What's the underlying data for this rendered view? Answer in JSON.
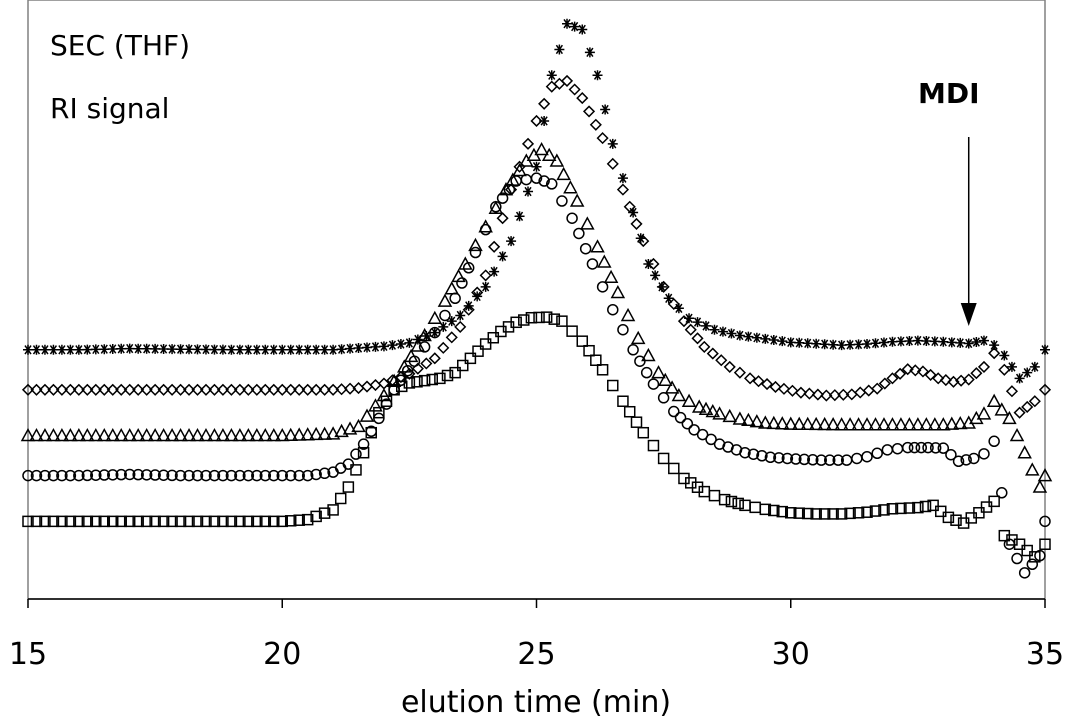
{
  "chart_data": {
    "type": "scatter",
    "title": "",
    "xlabel": "elution time (min)",
    "ylabel": "",
    "xlim": [
      15,
      35
    ],
    "ylim": [
      0,
      100
    ],
    "x_ticks": [
      "15",
      "20",
      "25",
      "30",
      "35"
    ],
    "grid": false,
    "legend": "none",
    "annotations": [
      {
        "text": "SEC (THF)",
        "style": "normal"
      },
      {
        "text": "RI signal",
        "style": "normal"
      },
      {
        "text": "MDI",
        "style": "bold",
        "arrow_x": 33.5
      }
    ],
    "series": [
      {
        "marker": "star",
        "points": [
          [
            15,
            42
          ],
          [
            16,
            42
          ],
          [
            17,
            42.2
          ],
          [
            18,
            42.1
          ],
          [
            19,
            42
          ],
          [
            20,
            42
          ],
          [
            21,
            42
          ],
          [
            21.5,
            42.3
          ],
          [
            22,
            42.6
          ],
          [
            22.5,
            43.2
          ],
          [
            23,
            45
          ],
          [
            23.5,
            48
          ],
          [
            24,
            53
          ],
          [
            24.5,
            61
          ],
          [
            25,
            74
          ],
          [
            25.3,
            90
          ],
          [
            25.6,
            99
          ],
          [
            25.9,
            98
          ],
          [
            26.2,
            90
          ],
          [
            26.5,
            78
          ],
          [
            26.9,
            66
          ],
          [
            27.2,
            57
          ],
          [
            27.6,
            51
          ],
          [
            28,
            47.5
          ],
          [
            28.5,
            45.5
          ],
          [
            29,
            44.5
          ],
          [
            30,
            43.3
          ],
          [
            31,
            42.8
          ],
          [
            31.5,
            43
          ],
          [
            32,
            43.4
          ],
          [
            32.5,
            43.6
          ],
          [
            33,
            43.4
          ],
          [
            33.5,
            43.1
          ],
          [
            33.8,
            43.6
          ],
          [
            34,
            42.8
          ],
          [
            34.2,
            41
          ],
          [
            34.5,
            37
          ],
          [
            34.8,
            39
          ],
          [
            35,
            42
          ]
        ]
      },
      {
        "marker": "diamond",
        "points": [
          [
            15,
            35
          ],
          [
            16,
            35
          ],
          [
            17,
            35
          ],
          [
            18,
            35
          ],
          [
            19,
            35
          ],
          [
            20,
            35
          ],
          [
            21,
            35
          ],
          [
            21.5,
            35.3
          ],
          [
            22,
            36.1
          ],
          [
            22.5,
            37.8
          ],
          [
            23,
            40.5
          ],
          [
            23.5,
            46
          ],
          [
            24,
            55
          ],
          [
            24.5,
            70
          ],
          [
            25,
            82
          ],
          [
            25.3,
            88
          ],
          [
            25.6,
            89
          ],
          [
            25.9,
            86
          ],
          [
            26.3,
            79
          ],
          [
            26.7,
            70
          ],
          [
            27.1,
            61
          ],
          [
            27.5,
            53
          ],
          [
            27.9,
            47
          ],
          [
            28.3,
            42.5
          ],
          [
            28.8,
            39
          ],
          [
            29.2,
            37
          ],
          [
            29.7,
            35.5
          ],
          [
            30.2,
            34.5
          ],
          [
            30.7,
            34
          ],
          [
            31.2,
            34.2
          ],
          [
            31.7,
            35.2
          ],
          [
            32,
            37
          ],
          [
            32.3,
            38.6
          ],
          [
            32.6,
            38.2
          ],
          [
            32.9,
            37
          ],
          [
            33.2,
            36.4
          ],
          [
            33.5,
            36.8
          ],
          [
            33.8,
            39
          ],
          [
            34,
            41.4
          ],
          [
            34.2,
            38.5
          ],
          [
            34.5,
            31
          ],
          [
            34.8,
            33
          ],
          [
            35,
            35
          ]
        ]
      },
      {
        "marker": "triangle",
        "points": [
          [
            15,
            27
          ],
          [
            16,
            27
          ],
          [
            17,
            27
          ],
          [
            18,
            27
          ],
          [
            19,
            27
          ],
          [
            20,
            27
          ],
          [
            21,
            27.3
          ],
          [
            21.5,
            28.6
          ],
          [
            22,
            34
          ],
          [
            22.4,
            39
          ],
          [
            22.8,
            44.5
          ],
          [
            23.2,
            50.5
          ],
          [
            23.6,
            57
          ],
          [
            24,
            63.5
          ],
          [
            24.4,
            70
          ],
          [
            24.8,
            75
          ],
          [
            25.1,
            77
          ],
          [
            25.4,
            75
          ],
          [
            25.8,
            68
          ],
          [
            26.2,
            60
          ],
          [
            26.6,
            52
          ],
          [
            27,
            44
          ],
          [
            27.4,
            38
          ],
          [
            27.8,
            34
          ],
          [
            28.2,
            32
          ],
          [
            28.6,
            30.8
          ],
          [
            29,
            29.9
          ],
          [
            29.5,
            29.2
          ],
          [
            30,
            29
          ],
          [
            31,
            28.9
          ],
          [
            32,
            28.9
          ],
          [
            33,
            28.9
          ],
          [
            33.5,
            29.2
          ],
          [
            33.8,
            30.8
          ],
          [
            34,
            33
          ],
          [
            34.3,
            30
          ],
          [
            34.6,
            24
          ],
          [
            34.9,
            18
          ],
          [
            35,
            20
          ]
        ]
      },
      {
        "marker": "circle",
        "points": [
          [
            15,
            20
          ],
          [
            16,
            20
          ],
          [
            17,
            20.2
          ],
          [
            18,
            20
          ],
          [
            19,
            20
          ],
          [
            20,
            20
          ],
          [
            20.5,
            20
          ],
          [
            21,
            20.6
          ],
          [
            21.3,
            22
          ],
          [
            21.6,
            25.5
          ],
          [
            21.9,
            30
          ],
          [
            22.2,
            35
          ],
          [
            22.6,
            40
          ],
          [
            23,
            45
          ],
          [
            23.4,
            51
          ],
          [
            23.8,
            59
          ],
          [
            24.2,
            67
          ],
          [
            24.6,
            71.5
          ],
          [
            25,
            72
          ],
          [
            25.3,
            71
          ],
          [
            25.7,
            65
          ],
          [
            26.1,
            57
          ],
          [
            26.5,
            49
          ],
          [
            26.9,
            42
          ],
          [
            27.3,
            36
          ],
          [
            27.7,
            31.2
          ],
          [
            28.1,
            28
          ],
          [
            28.6,
            25.5
          ],
          [
            29.1,
            24
          ],
          [
            29.6,
            23.2
          ],
          [
            30.1,
            22.9
          ],
          [
            30.6,
            22.7
          ],
          [
            31.1,
            22.7
          ],
          [
            31.5,
            23.3
          ],
          [
            31.9,
            24.5
          ],
          [
            32.3,
            24.9
          ],
          [
            32.7,
            24.9
          ],
          [
            33,
            24.8
          ],
          [
            33.3,
            22.5
          ],
          [
            33.6,
            23
          ],
          [
            33.8,
            23.8
          ],
          [
            34,
            26
          ],
          [
            34.3,
            8
          ],
          [
            34.6,
            3
          ],
          [
            34.9,
            6
          ],
          [
            35,
            12
          ]
        ]
      },
      {
        "marker": "square",
        "points": [
          [
            15,
            12
          ],
          [
            16,
            12
          ],
          [
            17,
            12
          ],
          [
            18,
            12
          ],
          [
            19,
            12
          ],
          [
            20,
            12
          ],
          [
            20.5,
            12.3
          ],
          [
            21,
            14
          ],
          [
            21.3,
            18
          ],
          [
            21.6,
            24
          ],
          [
            21.9,
            31
          ],
          [
            22.2,
            35
          ],
          [
            22.5,
            36.2
          ],
          [
            22.8,
            36.6
          ],
          [
            23.1,
            37
          ],
          [
            23.4,
            38
          ],
          [
            23.7,
            40.5
          ],
          [
            24,
            43
          ],
          [
            24.3,
            45.2
          ],
          [
            24.6,
            46.8
          ],
          [
            24.9,
            47.6
          ],
          [
            25.2,
            47.7
          ],
          [
            25.5,
            47
          ],
          [
            25.9,
            43.5
          ],
          [
            26.3,
            38.5
          ],
          [
            26.7,
            33
          ],
          [
            27.1,
            27.5
          ],
          [
            27.5,
            23
          ],
          [
            27.9,
            19.5
          ],
          [
            28.3,
            17.2
          ],
          [
            28.7,
            15.8
          ],
          [
            29.1,
            14.8
          ],
          [
            29.5,
            14.1
          ],
          [
            30,
            13.5
          ],
          [
            30.5,
            13.3
          ],
          [
            31,
            13.3
          ],
          [
            31.5,
            13.6
          ],
          [
            32,
            14.2
          ],
          [
            32.5,
            14.4
          ],
          [
            32.8,
            14.8
          ],
          [
            33.1,
            12.7
          ],
          [
            33.4,
            11.7
          ],
          [
            33.7,
            13.5
          ],
          [
            34,
            15.5
          ],
          [
            34.2,
            9.5
          ],
          [
            34.5,
            8
          ],
          [
            34.8,
            5.8
          ],
          [
            35,
            8
          ]
        ]
      }
    ]
  }
}
